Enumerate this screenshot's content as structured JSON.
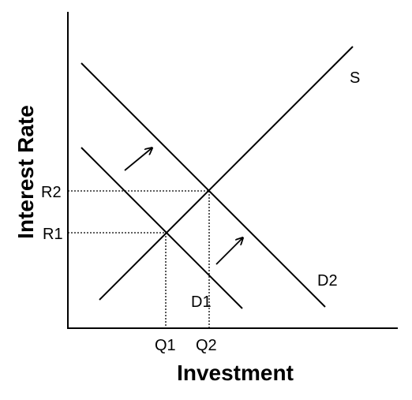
{
  "axes": {
    "x_title": "Investment",
    "y_title": "Interest Rate"
  },
  "curves": {
    "supply_label": "S",
    "demand1_label": "D1",
    "demand2_label": "D2"
  },
  "levels": {
    "r1": "R1",
    "r2": "R2",
    "q1": "Q1",
    "q2": "Q2"
  },
  "shift_arrows": [
    "demand-increase-arrow",
    "demand-increase-arrow"
  ],
  "colors": {
    "line": "#000000",
    "background": "#ffffff"
  }
}
